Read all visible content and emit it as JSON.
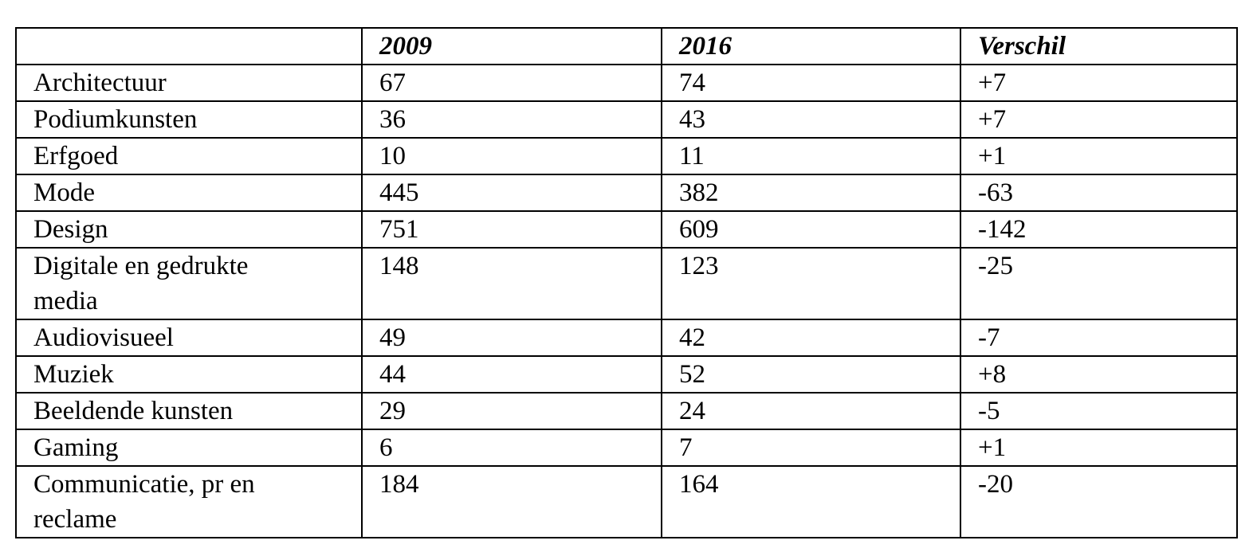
{
  "table": {
    "header": [
      "2009",
      "2016",
      "Verschil"
    ],
    "rows": [
      [
        "Architectuur",
        "67",
        "74",
        "+7"
      ],
      [
        "Podiumkunsten",
        "36",
        "43",
        "+7"
      ],
      [
        "Erfgoed",
        "10",
        "11",
        "+1"
      ],
      [
        "Mode",
        "445",
        "382",
        "-63"
      ],
      [
        "Design",
        "751",
        "609",
        "-142"
      ],
      [
        "Digitale en gedrukte\nmedia",
        "148",
        "123",
        "-25"
      ],
      [
        "Audiovisueel",
        "49",
        "42",
        "-7"
      ],
      [
        "Muziek",
        "44",
        "52",
        "+8"
      ],
      [
        "Beeldende kunsten",
        "29",
        "24",
        "-5"
      ],
      [
        "Gaming",
        "6",
        "7",
        "+1"
      ],
      [
        "Communicatie, pr en\nreclame",
        "184",
        "164",
        "-20"
      ]
    ]
  }
}
